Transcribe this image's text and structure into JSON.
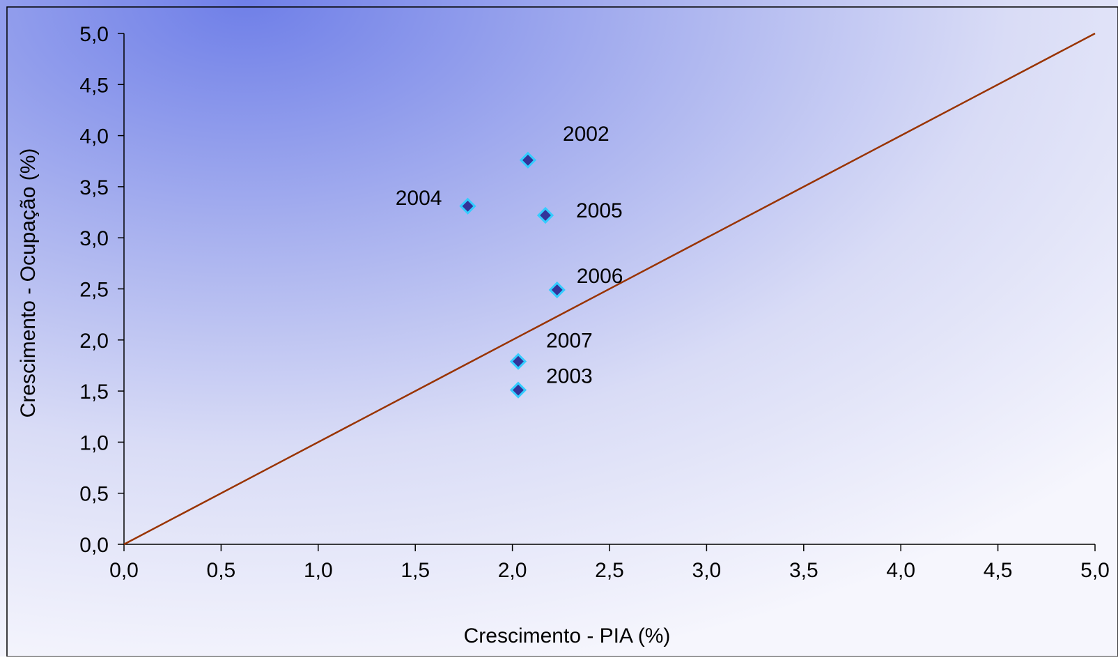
{
  "chart_data": {
    "type": "scatter",
    "xlabel": "Crescimento - PIA (%)",
    "ylabel": "Crescimento - Ocupação (%)",
    "xlim": [
      0,
      5
    ],
    "ylim": [
      0,
      5
    ],
    "x_ticks": [
      "0,0",
      "0,5",
      "1,0",
      "1,5",
      "2,0",
      "2,5",
      "3,0",
      "3,5",
      "4,0",
      "4,5",
      "5,0"
    ],
    "y_ticks": [
      "0,0",
      "0,5",
      "1,0",
      "1,5",
      "2,0",
      "2,5",
      "3,0",
      "3,5",
      "4,0",
      "4,5",
      "5,0"
    ],
    "grid": false,
    "reference_line": {
      "from": [
        0,
        0
      ],
      "to": [
        5,
        5
      ],
      "color": "#993300"
    },
    "points": [
      {
        "label": "2002",
        "x": 2.08,
        "y": 3.76
      },
      {
        "label": "2004",
        "x": 1.77,
        "y": 3.31
      },
      {
        "label": "2005",
        "x": 2.17,
        "y": 3.22
      },
      {
        "label": "2006",
        "x": 2.23,
        "y": 2.49
      },
      {
        "label": "2007",
        "x": 2.03,
        "y": 1.79
      },
      {
        "label": "2003",
        "x": 2.03,
        "y": 1.51
      }
    ],
    "marker": {
      "shape": "diamond",
      "fill": "#333399",
      "stroke": "#33ccff"
    }
  }
}
